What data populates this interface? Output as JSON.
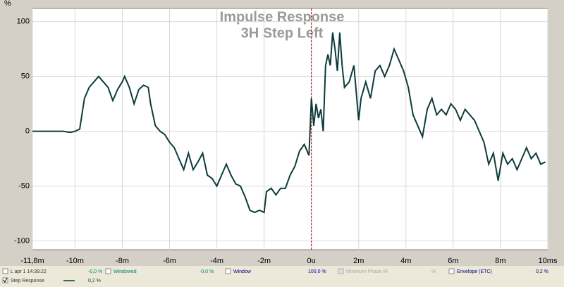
{
  "chart_data": {
    "type": "line",
    "title": "Impulse Response",
    "subtitle": "3H Step Left",
    "y_label": "%",
    "x": [
      -11.8,
      -10.5,
      -10.2,
      -10,
      -9.8,
      -9.6,
      -9.4,
      -9.2,
      -9.0,
      -8.8,
      -8.6,
      -8.4,
      -8.2,
      -8.0,
      -7.9,
      -7.7,
      -7.5,
      -7.3,
      -7.1,
      -6.9,
      -6.8,
      -6.6,
      -6.4,
      -6.2,
      -6.0,
      -5.8,
      -5.6,
      -5.4,
      -5.2,
      -5.0,
      -4.8,
      -4.6,
      -4.4,
      -4.2,
      -4.0,
      -3.8,
      -3.6,
      -3.4,
      -3.2,
      -3.0,
      -2.8,
      -2.6,
      -2.4,
      -2.2,
      -2.0,
      -1.9,
      -1.7,
      -1.5,
      -1.3,
      -1.1,
      -0.9,
      -0.7,
      -0.5,
      -0.3,
      -0.1,
      0,
      0.1,
      0.2,
      0.3,
      0.4,
      0.5,
      0.6,
      0.7,
      0.8,
      0.9,
      1.0,
      1.1,
      1.2,
      1.3,
      1.4,
      1.6,
      1.8,
      2.0,
      2.1,
      2.3,
      2.5,
      2.7,
      2.9,
      3.1,
      3.3,
      3.5,
      3.7,
      3.9,
      4.1,
      4.3,
      4.5,
      4.7,
      4.9,
      5.1,
      5.3,
      5.5,
      5.7,
      5.9,
      6.1,
      6.3,
      6.5,
      6.7,
      6.9,
      7.1,
      7.3,
      7.5,
      7.7,
      7.9,
      8.1,
      8.3,
      8.5,
      8.7,
      8.9,
      9.1,
      9.3,
      9.5,
      9.7,
      9.9
    ],
    "series": [
      {
        "name": "Step Response",
        "color": "#0d3b3b",
        "values": [
          0,
          0,
          -1,
          0,
          2,
          30,
          40,
          45,
          50,
          45,
          40,
          28,
          38,
          45,
          50,
          40,
          25,
          38,
          42,
          40,
          25,
          5,
          0,
          -3,
          -10,
          -15,
          -25,
          -35,
          -20,
          -35,
          -28,
          -20,
          -40,
          -43,
          -50,
          -40,
          -30,
          -40,
          -48,
          -50,
          -60,
          -72,
          -74,
          -72,
          -74,
          -55,
          -52,
          -58,
          -52,
          -52,
          -40,
          -32,
          -18,
          -12,
          -22,
          30,
          5,
          25,
          12,
          20,
          0,
          60,
          70,
          60,
          90,
          75,
          55,
          90,
          60,
          40,
          45,
          60,
          10,
          30,
          45,
          30,
          55,
          60,
          50,
          60,
          75,
          65,
          55,
          40,
          15,
          5,
          -5,
          20,
          30,
          15,
          20,
          15,
          25,
          20,
          10,
          20,
          15,
          10,
          0,
          -10,
          -30,
          -20,
          -45,
          -20,
          -30,
          -25,
          -35,
          -25,
          -15,
          -25,
          -20,
          -30,
          -28
        ]
      }
    ],
    "xlim": [
      -11.8,
      10
    ],
    "ylim": [
      -108,
      112
    ],
    "xticks": [
      {
        "value": -11.8,
        "label": "-11,8m"
      },
      {
        "value": -10,
        "label": "-10m"
      },
      {
        "value": -8,
        "label": "-8m"
      },
      {
        "value": -6,
        "label": "-6m"
      },
      {
        "value": -4,
        "label": "-4m"
      },
      {
        "value": -2,
        "label": "-2m"
      },
      {
        "value": 0,
        "label": "0u"
      },
      {
        "value": 2,
        "label": "2m"
      },
      {
        "value": 4,
        "label": "4m"
      },
      {
        "value": 6,
        "label": "6m"
      },
      {
        "value": 8,
        "label": "8m"
      },
      {
        "value": 10,
        "label": "10ms"
      }
    ],
    "yticks": [
      -100,
      -50,
      0,
      50,
      100
    ],
    "grid": true,
    "marker_x": 0,
    "marker_color": "#c00000"
  },
  "legend_bar": {
    "row1": [
      "L apr 1 14:39:22",
      "-0,0 %",
      "Windowed",
      "-0,0 %",
      "Window",
      "100,0 %",
      "Minimum Phase IR",
      "%",
      "Envelope (ETC)",
      "0,2 %"
    ],
    "row2": [
      "0,2 %"
    ]
  }
}
